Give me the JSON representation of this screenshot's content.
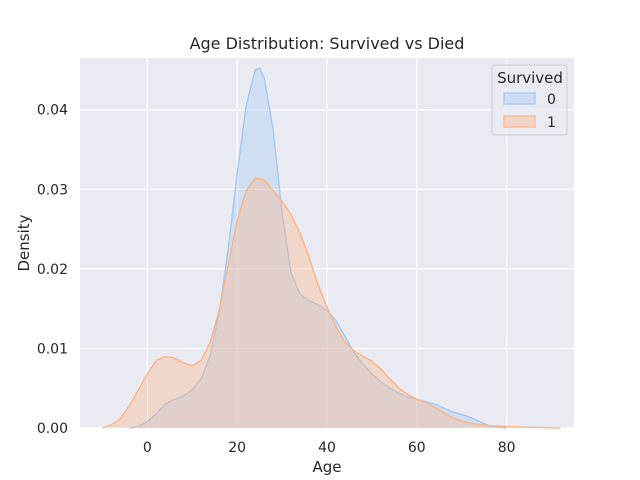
{
  "chart_data": {
    "type": "area",
    "title": "Age Distribution: Survived vs Died",
    "xlabel": "Age",
    "ylabel": "Density",
    "xlim": [
      -15,
      95
    ],
    "ylim": [
      0,
      0.0465
    ],
    "x_ticks": [
      0,
      20,
      40,
      60,
      80
    ],
    "y_ticks": [
      0.0,
      0.01,
      0.02,
      0.03,
      0.04
    ],
    "x_tick_labels": [
      "0",
      "20",
      "40",
      "60",
      "80"
    ],
    "y_tick_labels": [
      "0.00",
      "0.01",
      "0.02",
      "0.03",
      "0.04"
    ],
    "grid": true,
    "legend": {
      "title": "Survived",
      "placement": "top-right"
    },
    "series": [
      {
        "name": "0",
        "color": "#a1c9f4",
        "fill_color": "#a1c9f4",
        "points": [
          [
            -4,
            0.0
          ],
          [
            -2,
            0.0002
          ],
          [
            0,
            0.0008
          ],
          [
            2,
            0.0018
          ],
          [
            4,
            0.003
          ],
          [
            6,
            0.0036
          ],
          [
            8,
            0.004
          ],
          [
            10,
            0.0048
          ],
          [
            12,
            0.0062
          ],
          [
            14,
            0.0092
          ],
          [
            16,
            0.0145
          ],
          [
            18,
            0.0225
          ],
          [
            20,
            0.032
          ],
          [
            22,
            0.0405
          ],
          [
            24,
            0.045
          ],
          [
            25,
            0.0452
          ],
          [
            26,
            0.044
          ],
          [
            28,
            0.0375
          ],
          [
            30,
            0.027
          ],
          [
            32,
            0.0195
          ],
          [
            34,
            0.0168
          ],
          [
            36,
            0.016
          ],
          [
            38,
            0.0155
          ],
          [
            40,
            0.0148
          ],
          [
            42,
            0.0135
          ],
          [
            44,
            0.0115
          ],
          [
            46,
            0.0095
          ],
          [
            48,
            0.008
          ],
          [
            50,
            0.0068
          ],
          [
            52,
            0.0058
          ],
          [
            54,
            0.005
          ],
          [
            56,
            0.0044
          ],
          [
            58,
            0.0039
          ],
          [
            60,
            0.0036
          ],
          [
            62,
            0.0033
          ],
          [
            64,
            0.003
          ],
          [
            66,
            0.0025
          ],
          [
            68,
            0.002
          ],
          [
            70,
            0.0017
          ],
          [
            72,
            0.0013
          ],
          [
            74,
            0.0008
          ],
          [
            76,
            0.0003
          ],
          [
            78,
            0.0001
          ],
          [
            80,
            0.0
          ]
        ]
      },
      {
        "name": "1",
        "color": "#ffb482",
        "fill_color": "#ffb482",
        "points": [
          [
            -10,
            0.0
          ],
          [
            -8,
            0.0004
          ],
          [
            -6,
            0.0012
          ],
          [
            -4,
            0.0028
          ],
          [
            -2,
            0.0048
          ],
          [
            0,
            0.0068
          ],
          [
            2,
            0.0085
          ],
          [
            4,
            0.009
          ],
          [
            6,
            0.0088
          ],
          [
            8,
            0.0082
          ],
          [
            10,
            0.0078
          ],
          [
            12,
            0.0085
          ],
          [
            14,
            0.0108
          ],
          [
            16,
            0.0148
          ],
          [
            18,
            0.0205
          ],
          [
            20,
            0.026
          ],
          [
            22,
            0.0298
          ],
          [
            24,
            0.0314
          ],
          [
            26,
            0.0312
          ],
          [
            28,
            0.0298
          ],
          [
            30,
            0.0285
          ],
          [
            32,
            0.0268
          ],
          [
            34,
            0.0245
          ],
          [
            36,
            0.0215
          ],
          [
            38,
            0.018
          ],
          [
            40,
            0.0152
          ],
          [
            42,
            0.0127
          ],
          [
            44,
            0.0108
          ],
          [
            46,
            0.0097
          ],
          [
            48,
            0.009
          ],
          [
            50,
            0.0084
          ],
          [
            52,
            0.0074
          ],
          [
            54,
            0.0062
          ],
          [
            56,
            0.005
          ],
          [
            58,
            0.0042
          ],
          [
            60,
            0.0036
          ],
          [
            62,
            0.0032
          ],
          [
            64,
            0.0026
          ],
          [
            66,
            0.0019
          ],
          [
            68,
            0.0013
          ],
          [
            70,
            0.0009
          ],
          [
            72,
            0.0006
          ],
          [
            76,
            0.0003
          ],
          [
            80,
            0.0002
          ],
          [
            84,
            0.0001
          ],
          [
            88,
            5e-05
          ],
          [
            92,
            0.0
          ]
        ]
      }
    ]
  }
}
